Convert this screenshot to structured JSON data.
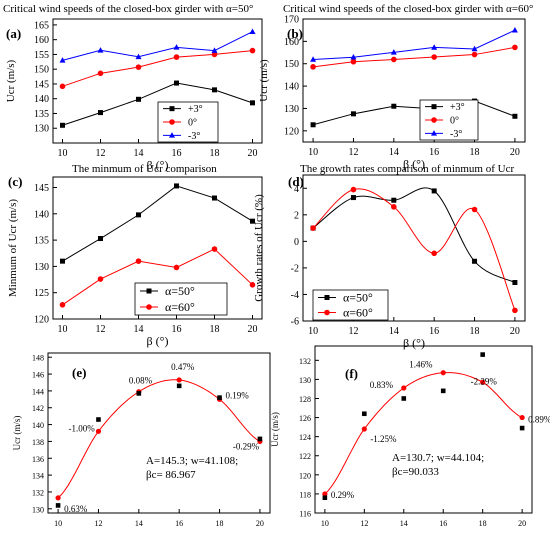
{
  "chart_data": [
    {
      "panel": "(a)",
      "type": "line",
      "title": "Critical wind speeds of the closed-box girder with α=50°",
      "xlabel": "β (°)",
      "ylabel": "Ucr (m/s)",
      "x": [
        10,
        12,
        14,
        16,
        18,
        20
      ],
      "xlim": [
        9.5,
        20.5
      ],
      "ylim": [
        125,
        167
      ],
      "xticks": [
        "10",
        "12",
        "14",
        "16",
        "18",
        "20"
      ],
      "yticks": [
        "130",
        "135",
        "140",
        "145",
        "150",
        "155",
        "160",
        "165"
      ],
      "legend_position": "bottom-right",
      "series": [
        {
          "name": "+3°",
          "color": "#000000",
          "marker": "square",
          "values": [
            131.0,
            135.3,
            139.8,
            145.3,
            143.0,
            138.6
          ]
        },
        {
          "name": "0°",
          "color": "#ff0000",
          "marker": "circle",
          "values": [
            144.2,
            148.6,
            150.7,
            154.1,
            155.0,
            156.3
          ]
        },
        {
          "name": "-3°",
          "color": "#0000ff",
          "marker": "triangle",
          "values": [
            153.0,
            156.4,
            154.2,
            157.4,
            156.3,
            162.7
          ]
        }
      ]
    },
    {
      "panel": "(b)",
      "type": "line",
      "title": "Critical wind speeds of the closed-box girder with α=60°",
      "xlabel": "β (°)",
      "ylabel": "Ucr (m/s)",
      "x": [
        10,
        12,
        14,
        16,
        18,
        20
      ],
      "xlim": [
        9.5,
        20.5
      ],
      "ylim": [
        115,
        170
      ],
      "xticks": [
        "10",
        "12",
        "14",
        "16",
        "18",
        "20"
      ],
      "yticks": [
        "120",
        "130",
        "140",
        "150",
        "160",
        "170"
      ],
      "legend_position": "bottom-right",
      "series": [
        {
          "name": "+3°",
          "color": "#000000",
          "marker": "square",
          "values": [
            122.7,
            127.6,
            131.0,
            129.8,
            133.3,
            126.5
          ]
        },
        {
          "name": "0°",
          "color": "#ff0000",
          "marker": "circle",
          "values": [
            148.6,
            150.9,
            151.9,
            153.0,
            154.1,
            157.3
          ]
        },
        {
          "name": "-3°",
          "color": "#0000ff",
          "marker": "triangle",
          "values": [
            151.9,
            152.9,
            155.1,
            157.3,
            156.6,
            165.0
          ]
        }
      ]
    },
    {
      "panel": "(c)",
      "type": "line",
      "title": "The minmum of Ucr comparison",
      "xlabel": "β (°)",
      "ylabel": "Minmum of Ucr (m/s)",
      "x": [
        10,
        12,
        14,
        16,
        18,
        20
      ],
      "xlim": [
        9.5,
        20.5
      ],
      "ylim": [
        120,
        147
      ],
      "xticks": [
        "10",
        "12",
        "14",
        "16",
        "18",
        "20"
      ],
      "yticks": [
        "120",
        "125",
        "130",
        "135",
        "140",
        "145"
      ],
      "legend_position": "bottom-right",
      "series": [
        {
          "name": "α=50°",
          "color": "#000000",
          "marker": "square",
          "values": [
            131.0,
            135.3,
            139.8,
            145.3,
            143.0,
            138.6
          ]
        },
        {
          "name": "α=60°",
          "color": "#ff0000",
          "marker": "circle",
          "values": [
            122.7,
            127.6,
            131.0,
            129.8,
            133.3,
            126.5
          ]
        }
      ]
    },
    {
      "panel": "(d)",
      "type": "line",
      "title": "The growth rates comparison of minmum of Ucr",
      "xlabel": "β (°)",
      "ylabel": "Growth rates of Ucr (%)",
      "x": [
        10,
        12,
        14,
        16,
        18,
        20
      ],
      "xlim": [
        9.5,
        20.5
      ],
      "ylim": [
        -6,
        5
      ],
      "xticks": [
        "10",
        "12",
        "14",
        "16",
        "18",
        "20"
      ],
      "yticks": [
        "-6",
        "-4",
        "-2",
        "0",
        "2",
        "4"
      ],
      "legend_position": "bottom-left",
      "series": [
        {
          "name": "α=50°",
          "color": "#000000",
          "marker": "square",
          "values": [
            1.0,
            3.3,
            3.1,
            3.8,
            -1.5,
            -3.1
          ]
        },
        {
          "name": "α=60°",
          "color": "#ff0000",
          "marker": "circle",
          "values": [
            1.0,
            3.9,
            2.6,
            -0.9,
            2.4,
            -5.2
          ]
        }
      ]
    },
    {
      "panel": "(e)",
      "type": "scatter",
      "xlabel": "",
      "ylabel": "Ucr (m/s)",
      "xlim": [
        9.5,
        20.5
      ],
      "ylim": [
        129.5,
        148.5
      ],
      "xticks": [
        "10",
        "12",
        "14",
        "16",
        "18",
        "20"
      ],
      "yticks": [
        "130",
        "132",
        "134",
        "136",
        "138",
        "140",
        "142",
        "144",
        "146",
        "148"
      ],
      "measured": {
        "x": [
          10,
          12,
          14,
          16,
          18,
          20
        ],
        "y": [
          130.4,
          140.6,
          143.7,
          144.6,
          143.2,
          138.3
        ]
      },
      "fitted": {
        "x": [
          10,
          12,
          14,
          16,
          18,
          20
        ],
        "y": [
          131.3,
          139.2,
          143.9,
          145.3,
          143.0,
          138.0
        ]
      },
      "labels": [
        "0.63%",
        "-1.00%",
        "0.08%",
        "0.47%",
        "0.19%",
        "-0.29%"
      ],
      "fit": {
        "A": 145.3,
        "w": 41.108,
        "xc": 86.967
      },
      "fit_text": [
        "A=145.3; w=41.108;",
        "βc= 86.967"
      ]
    },
    {
      "panel": "(f)",
      "type": "scatter",
      "xlabel": "",
      "ylabel": "Ucr (m/s)",
      "xlim": [
        9.5,
        20.5
      ],
      "ylim": [
        116,
        133.5
      ],
      "xticks": [
        "10",
        "12",
        "14",
        "16",
        "18",
        "20"
      ],
      "yticks": [
        "116",
        "118",
        "120",
        "122",
        "124",
        "126",
        "128",
        "130",
        "132"
      ],
      "measured": {
        "x": [
          10,
          12,
          14,
          16,
          18,
          20
        ],
        "y": [
          117.6,
          126.4,
          128.0,
          128.8,
          132.6,
          124.9
        ]
      },
      "fitted": {
        "x": [
          10,
          12,
          14,
          16,
          18,
          20
        ],
        "y": [
          118.0,
          124.8,
          129.1,
          130.7,
          129.7,
          126.0
        ]
      },
      "labels": [
        "0.29%",
        "-1.25%",
        "0.83%",
        "1.46%",
        "-2.29%",
        "0.89%"
      ],
      "fit": {
        "A": 130.7,
        "w": 44.104,
        "xc": 90.033
      },
      "fit_text": [
        "A=130.7; w=44.104;",
        "βc=90.033"
      ]
    }
  ]
}
